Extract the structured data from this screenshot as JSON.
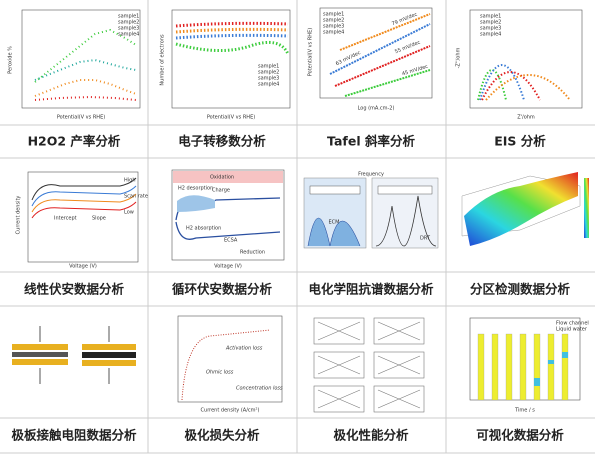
{
  "cells": [
    {
      "caption": "H2O2 产率分析",
      "labels": [
        "Potential(V vs RHE)",
        "Peroxide %",
        "sample1",
        "sample2",
        "sample3",
        "sample4"
      ]
    },
    {
      "caption": "电子转移数分析",
      "labels": [
        "Potential(V vs RHE)",
        "Number of electrons",
        "sample1",
        "sample2",
        "sample3",
        "sample4"
      ]
    },
    {
      "caption": "Tafel 斜率分析",
      "labels": [
        "Log (mA.cm-2)",
        "Potential(V vs RHE)",
        "sample1",
        "sample2",
        "sample3",
        "sample4",
        "79 mV/dec",
        "63 mV/dec",
        "55 mV/dec",
        "45 mV/dec"
      ]
    },
    {
      "caption": "EIS 分析",
      "labels": [
        "Z'/ohm",
        "-Z''/ohm",
        "sample1",
        "sample2",
        "sample3",
        "sample4"
      ]
    },
    {
      "caption": "线性伏安数据分析",
      "labels": [
        "Voltage (V)",
        "Current density",
        "High",
        "Low",
        "Scan rate",
        "Slope",
        "Intercept"
      ]
    },
    {
      "caption": "循环伏安数据分析",
      "labels": [
        "Oxidation",
        "Reduction",
        "H2 desorption",
        "H2 absorption",
        "Charge",
        "ECSA",
        "Voltage (V)"
      ]
    },
    {
      "caption": "电化学阻抗谱数据分析",
      "labels": [
        "ECM",
        "DRT",
        "Frequency"
      ]
    },
    {
      "caption": "分区检测数据分析",
      "labels": []
    },
    {
      "caption": "极板接触电阻数据分析",
      "labels": []
    },
    {
      "caption": "极化损失分析",
      "labels": [
        "Activation loss",
        "Ohmic loss",
        "Concentration loss",
        "Current density (A/cm²)"
      ]
    },
    {
      "caption": "极化性能分析",
      "labels": []
    },
    {
      "caption": "可视化数据分析",
      "labels": [
        "Time / s",
        "Flow channel",
        "Liquid water"
      ]
    }
  ]
}
